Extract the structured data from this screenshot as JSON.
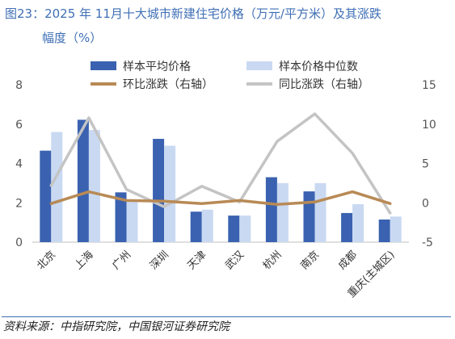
{
  "header": {
    "title_line1": "图23：2025 年 11月十大城市新建住宅价格（万元/平方米）及其涨跌",
    "title_line2": "幅度（%）"
  },
  "footer": {
    "source": "资料来源：中指研究院，中国银河证券研究院"
  },
  "colors": {
    "avg": "#3a62b0",
    "median": "#c9d9f2",
    "mom": "#b88a55",
    "yoy": "#c4c4c4",
    "title": "#3f6fb5"
  },
  "chart_data": {
    "type": "bar",
    "categories": [
      "北京",
      "上海",
      "广州",
      "深圳",
      "天津",
      "武汉",
      "杭州",
      "南京",
      "成都",
      "重庆(主城区)"
    ],
    "series": [
      {
        "name": "样本平均价格",
        "kind": "bar",
        "axis": "left",
        "values": [
          4.65,
          6.22,
          2.53,
          5.25,
          1.55,
          1.35,
          3.3,
          2.58,
          1.48,
          1.15
        ]
      },
      {
        "name": "样本价格中位数",
        "kind": "bar",
        "axis": "left",
        "values": [
          5.6,
          5.7,
          2.1,
          4.9,
          1.65,
          1.35,
          3.0,
          3.0,
          1.93,
          1.3
        ]
      },
      {
        "name": "环比涨跌（右轴）",
        "kind": "line",
        "axis": "right",
        "values": [
          -0.1,
          1.4,
          0.3,
          0.2,
          -0.1,
          0.3,
          -0.2,
          0.1,
          1.4,
          -0.1
        ]
      },
      {
        "name": "同比涨跌（右轴）",
        "kind": "line",
        "axis": "right",
        "values": [
          2.2,
          10.8,
          1.7,
          -0.5,
          2.1,
          0.1,
          7.8,
          11.3,
          6.3,
          -1.3
        ]
      }
    ],
    "y_left": {
      "min": 0,
      "max": 8,
      "ticks": [
        0,
        2,
        4,
        6,
        8
      ]
    },
    "y_right": {
      "min": -5,
      "max": 15,
      "ticks": [
        -5,
        0,
        5,
        10,
        15
      ]
    },
    "legend_position": "top",
    "grid": false
  }
}
